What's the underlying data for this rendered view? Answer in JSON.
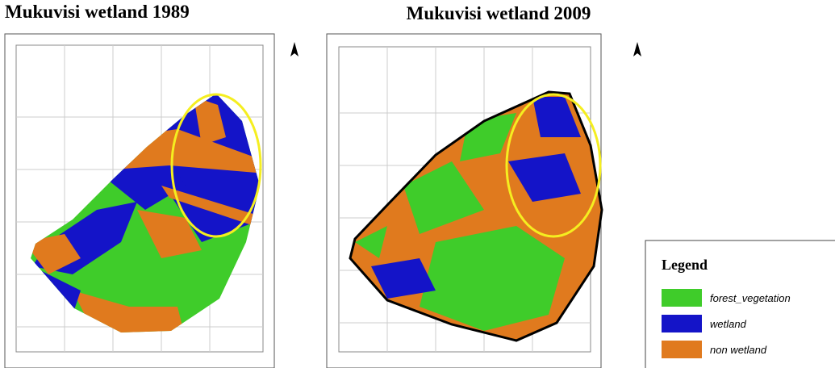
{
  "maps": [
    {
      "title": "Mukuvisi wetland 1989"
    },
    {
      "title": "Mukuvisi wetland 2009"
    }
  ],
  "legend": {
    "title": "Legend",
    "items": [
      {
        "label": "forest_vegetation",
        "color": "#3fcc2a"
      },
      {
        "label": "wetland",
        "color": "#1414c8"
      },
      {
        "label": "non wetland",
        "color": "#e07a1e"
      }
    ]
  }
}
